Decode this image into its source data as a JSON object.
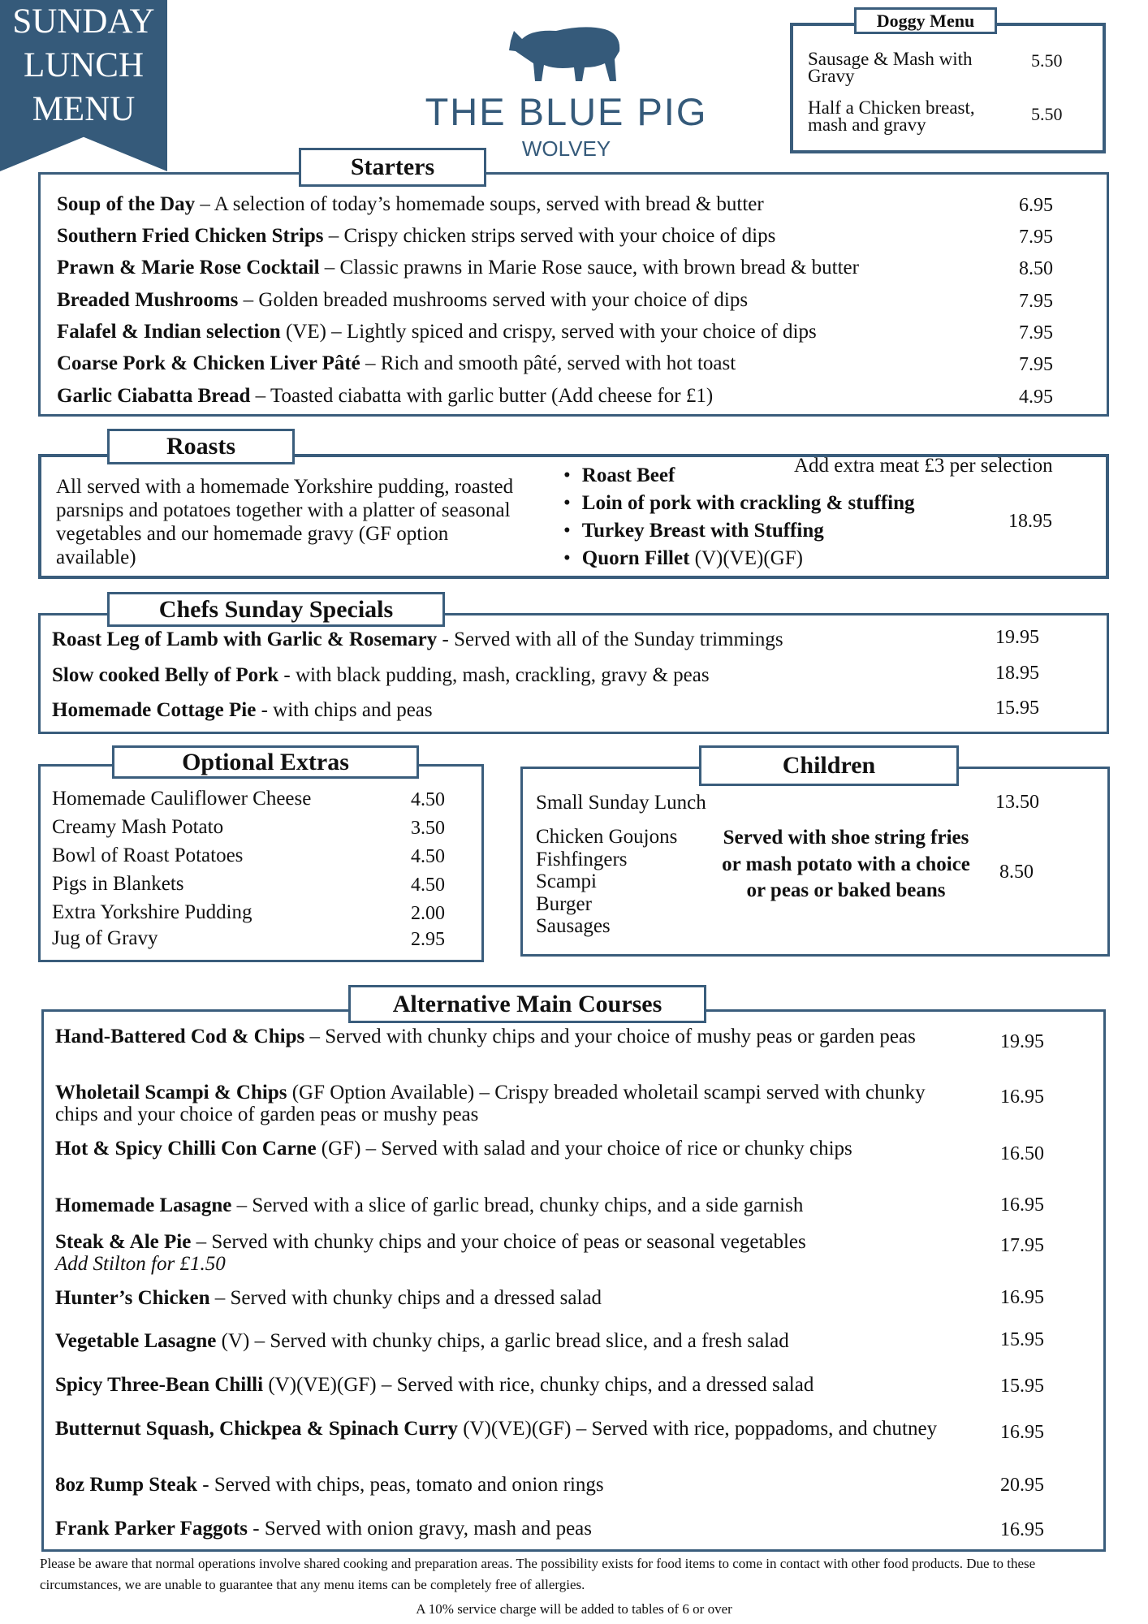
{
  "banner": {
    "line1": "SUNDAY",
    "line2": "LUNCH",
    "line3": "MENU"
  },
  "logo": {
    "name": "THE BLUE PIG",
    "location": "WOLVEY",
    "icon": "pig-icon",
    "color": "#355a7a"
  },
  "doggy": {
    "title": "Doggy Menu",
    "items": [
      {
        "name": "Sausage & Mash with Gravy",
        "price": "5.50"
      },
      {
        "name": "Half a Chicken breast, mash and gravy",
        "price": "5.50"
      }
    ]
  },
  "starters": {
    "title": "Starters",
    "items": [
      {
        "name": "Soup of the Day",
        "tag": "",
        "desc": " – A selection of today’s homemade soups, served with bread & butter",
        "price": "6.95"
      },
      {
        "name": "Southern Fried Chicken Strips",
        "tag": "",
        "desc": " – Crispy chicken strips served with your choice of dips",
        "price": "7.95"
      },
      {
        "name": "Prawn & Marie Rose Cocktail",
        "tag": "",
        "desc": " – Classic prawns in Marie Rose sauce, with brown bread & butter",
        "price": "8.50"
      },
      {
        "name": "Breaded Mushrooms",
        "tag": "",
        "desc": " – Golden breaded mushrooms served with your choice of dips",
        "price": "7.95"
      },
      {
        "name": "Falafel & Indian selection",
        "tag": " (VE)",
        "desc": " – Lightly spiced and crispy, served with your choice of dips",
        "price": "7.95"
      },
      {
        "name": "Coarse Pork & Chicken Liver Pâté",
        "tag": "",
        "desc": " – Rich and smooth pâté, served with hot toast",
        "price": "7.95"
      },
      {
        "name": "Garlic Ciabatta Bread",
        "tag": "",
        "desc": " – Toasted ciabatta with garlic butter (Add cheese for £1)",
        "price": "4.95"
      }
    ]
  },
  "roasts": {
    "title": "Roasts",
    "description": "All served with a homemade Yorkshire pudding, roasted parsnips and potatoes together with a platter of seasonal vegetables and our homemade gravy (GF option available)",
    "extra": "Add extra meat £3 per selection",
    "price": "18.95",
    "options": [
      {
        "name": "Roast Beef",
        "tag": ""
      },
      {
        "name": "Loin of pork with crackling & stuffing",
        "tag": ""
      },
      {
        "name": "Turkey Breast with Stuffing",
        "tag": ""
      },
      {
        "name": "Quorn Fillet",
        "tag": " (V)(VE)(GF)"
      }
    ]
  },
  "specials": {
    "title": "Chefs Sunday Specials",
    "items": [
      {
        "name": "Roast Leg of Lamb with Garlic & Rosemary",
        "tag": "",
        "desc": " - Served with all of the Sunday trimmings",
        "price": "19.95"
      },
      {
        "name": "Slow cooked Belly of Pork",
        "tag": "",
        "desc": " - with black pudding, mash, crackling, gravy & peas",
        "price": "18.95"
      },
      {
        "name": "Homemade Cottage Pie",
        "tag": "",
        "desc": " - with chips and peas",
        "price": "15.95"
      }
    ]
  },
  "extras": {
    "title": "Optional Extras",
    "items": [
      {
        "name": "Homemade Cauliflower Cheese",
        "price": "4.50"
      },
      {
        "name": "Creamy Mash Potato",
        "price": "3.50"
      },
      {
        "name": "Bowl of Roast Potatoes",
        "price": "4.50"
      },
      {
        "name": "Pigs in Blankets",
        "price": "4.50"
      },
      {
        "name": "Extra Yorkshire Pudding",
        "price": "2.00"
      },
      {
        "name": "Jug of Gravy",
        "price": "2.95"
      }
    ]
  },
  "children": {
    "title": "Children",
    "small": {
      "name": "Small Sunday Lunch",
      "price": "13.50"
    },
    "items": [
      "Chicken Goujons",
      "Fishfingers",
      "Scampi",
      "Burger",
      "Sausages"
    ],
    "served": "Served with shoe string fries or mash potato with a choice or peas or baked beans",
    "price": "8.50"
  },
  "mains": {
    "title": "Alternative Main Courses",
    "items": [
      {
        "name": "Hand-Battered Cod & Chips",
        "tag": "",
        "desc": " – Served with chunky chips and your choice of mushy peas or garden peas",
        "note": "",
        "price": "19.95"
      },
      {
        "name": "Wholetail Scampi & Chips",
        "tag": " (GF Option Available)",
        "desc": " – Crispy breaded wholetail scampi served with chunky chips and your choice of garden peas or mushy peas",
        "note": "",
        "price": "16.95"
      },
      {
        "name": "Hot & Spicy Chilli Con Carne",
        "tag": " (GF)",
        "desc": " – Served with salad and your choice of rice or chunky chips",
        "note": "",
        "price": "16.50"
      },
      {
        "name": "Homemade Lasagne",
        "tag": "",
        "desc": " – Served with a slice of garlic bread, chunky chips, and a side garnish",
        "note": "",
        "price": "16.95"
      },
      {
        "name": "Steak & Ale Pie",
        "tag": "",
        "desc": " – Served with chunky chips and your choice of peas or seasonal vegetables",
        "note": "Add Stilton for £1.50",
        "price": "17.95"
      },
      {
        "name": "Hunter’s Chicken",
        "tag": "",
        "desc": " – Served with chunky chips and a dressed salad",
        "note": "",
        "price": "16.95"
      },
      {
        "name": "Vegetable Lasagne",
        "tag": " (V)",
        "desc": " – Served with chunky chips, a garlic bread slice, and a fresh salad",
        "note": "",
        "price": "15.95"
      },
      {
        "name": "Spicy Three-Bean Chilli",
        "tag": " (V)(VE)(GF)",
        "desc": " – Served with rice, chunky chips, and a dressed salad",
        "note": "",
        "price": "15.95"
      },
      {
        "name": "Butternut Squash, Chickpea & Spinach Curry",
        "tag": " (V)(VE)(GF)",
        "desc": " – Served with rice, poppadoms, and chutney",
        "note": "",
        "price": "16.95"
      },
      {
        "name": "8oz Rump Steak",
        "tag": "",
        "desc": " - Served with chips, peas, tomato and onion rings",
        "note": "",
        "price": "20.95"
      },
      {
        "name": "Frank Parker Faggots",
        "tag": "",
        "desc": " - Served with onion gravy, mash and peas",
        "note": "",
        "price": "16.95"
      }
    ]
  },
  "footer": {
    "allergy": "Please be aware that normal operations involve shared cooking and preparation areas. The possibility exists for food items to come in contact with other food products. Due to these circumstances, we are unable to guarantee that any menu items can be completely free of allergies.",
    "service": "A 10% service charge will be added to tables of 6 or over"
  }
}
